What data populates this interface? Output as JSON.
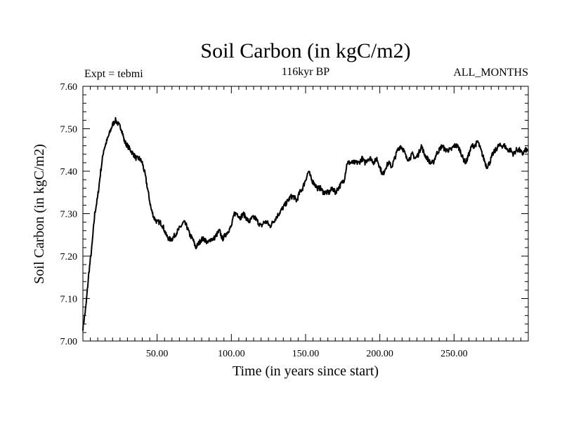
{
  "chart_data": {
    "type": "line",
    "title": "Soil Carbon (in kgC/m2)",
    "subtitle": "116kyr BP",
    "left_label": "Expt = tebmi",
    "right_label": "ALL_MONTHS",
    "xlabel": "Time (in years since start)",
    "ylabel": "Soil Carbon (in kgC/m2)",
    "xlim": [
      0,
      300
    ],
    "ylim": [
      7.0,
      7.6
    ],
    "x_ticks": [
      50,
      100,
      150,
      200,
      250
    ],
    "x_tick_labels": [
      "50.00",
      "100.00",
      "150.00",
      "200.00",
      "250.00"
    ],
    "y_ticks": [
      7.0,
      7.1,
      7.2,
      7.3,
      7.4,
      7.5,
      7.6
    ],
    "y_tick_labels": [
      "7.00",
      "7.10",
      "7.20",
      "7.30",
      "7.40",
      "7.50",
      "7.60"
    ],
    "series": [
      {
        "name": "Soil Carbon",
        "color": "#000000",
        "x": [
          0,
          2,
          4,
          6,
          8,
          10,
          12,
          14,
          16,
          18,
          20,
          22,
          24,
          26,
          28,
          30,
          32,
          34,
          36,
          38,
          40,
          42,
          44,
          46,
          48,
          50,
          52,
          54,
          56,
          58,
          60,
          62,
          64,
          66,
          68,
          70,
          72,
          74,
          76,
          78,
          80,
          82,
          84,
          86,
          88,
          90,
          92,
          94,
          96,
          98,
          100,
          102,
          104,
          106,
          108,
          110,
          112,
          114,
          116,
          118,
          120,
          122,
          124,
          126,
          128,
          130,
          132,
          134,
          136,
          138,
          140,
          142,
          144,
          146,
          148,
          150,
          152,
          154,
          156,
          158,
          160,
          162,
          164,
          166,
          168,
          170,
          172,
          174,
          176,
          178,
          180,
          182,
          184,
          186,
          188,
          190,
          192,
          194,
          196,
          198,
          200,
          202,
          204,
          206,
          208,
          210,
          212,
          214,
          216,
          218,
          220,
          222,
          224,
          226,
          228,
          230,
          232,
          234,
          236,
          238,
          240,
          242,
          244,
          246,
          248,
          250,
          252,
          254,
          256,
          258,
          260,
          262,
          264,
          266,
          268,
          270,
          272,
          274,
          276,
          278,
          280,
          282,
          284,
          286,
          288,
          290,
          292,
          294,
          296,
          298,
          300
        ],
        "values": [
          7.03,
          7.08,
          7.16,
          7.22,
          7.3,
          7.34,
          7.4,
          7.45,
          7.47,
          7.49,
          7.51,
          7.52,
          7.51,
          7.5,
          7.47,
          7.46,
          7.45,
          7.44,
          7.43,
          7.43,
          7.42,
          7.39,
          7.35,
          7.31,
          7.29,
          7.28,
          7.28,
          7.27,
          7.25,
          7.24,
          7.24,
          7.25,
          7.26,
          7.27,
          7.28,
          7.27,
          7.25,
          7.24,
          7.22,
          7.23,
          7.24,
          7.24,
          7.23,
          7.24,
          7.24,
          7.25,
          7.26,
          7.24,
          7.25,
          7.26,
          7.27,
          7.3,
          7.3,
          7.29,
          7.3,
          7.29,
          7.28,
          7.29,
          7.29,
          7.28,
          7.27,
          7.28,
          7.28,
          7.27,
          7.28,
          7.29,
          7.3,
          7.31,
          7.32,
          7.33,
          7.34,
          7.34,
          7.33,
          7.35,
          7.36,
          7.38,
          7.4,
          7.38,
          7.37,
          7.36,
          7.36,
          7.35,
          7.35,
          7.35,
          7.36,
          7.35,
          7.36,
          7.37,
          7.38,
          7.42,
          7.42,
          7.42,
          7.42,
          7.42,
          7.43,
          7.42,
          7.43,
          7.43,
          7.42,
          7.43,
          7.41,
          7.39,
          7.41,
          7.42,
          7.41,
          7.43,
          7.45,
          7.46,
          7.45,
          7.43,
          7.43,
          7.44,
          7.43,
          7.44,
          7.46,
          7.44,
          7.43,
          7.42,
          7.42,
          7.44,
          7.45,
          7.46,
          7.45,
          7.45,
          7.45,
          7.46,
          7.46,
          7.45,
          7.43,
          7.42,
          7.44,
          7.46,
          7.46,
          7.47,
          7.45,
          7.43,
          7.41,
          7.42,
          7.44,
          7.45,
          7.46,
          7.46,
          7.46,
          7.45,
          7.45,
          7.44,
          7.45,
          7.45,
          7.44,
          7.45,
          7.45
        ]
      }
    ]
  }
}
